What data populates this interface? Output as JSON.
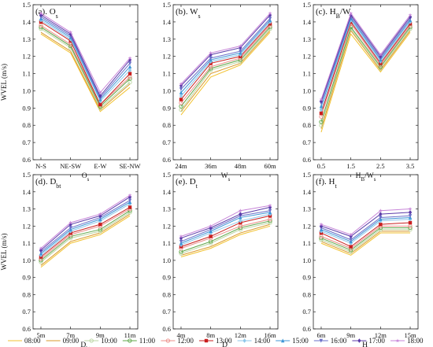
{
  "chart_data": {
    "type": "line",
    "ylim": [
      0.6,
      1.5
    ],
    "yticks": [
      0.6,
      0.7,
      0.8,
      0.9,
      1.0,
      1.1,
      1.2,
      1.3,
      1.4,
      1.5
    ],
    "ylabel": "WVEL (m/s)",
    "legend": [
      "08:00",
      "09:00",
      "10:00",
      "11:00",
      "12:00",
      "13:00",
      "14:00",
      "15:00",
      "16:00",
      "17:00",
      "18:00"
    ],
    "legend_placement": "bottom",
    "series_colors": [
      "#f2c230",
      "#d9982b",
      "#bcd6a4",
      "#5fa74a",
      "#ec8f8a",
      "#c91e1e",
      "#8fc7ea",
      "#3f96d6",
      "#6a6fc8",
      "#5b3aa8",
      "#c785d8"
    ],
    "series_markers": [
      "none",
      "none",
      "circle",
      "circle",
      "circle",
      "square",
      "diamond",
      "triangle-up",
      "triangle-down",
      "diamond",
      "star"
    ],
    "panels": [
      {
        "title": "(a). O",
        "title_sub": "s",
        "xlabel": "O",
        "xlabel_sub": "s",
        "categories": [
          "N-S",
          "NE-SW",
          "E-W",
          "SE-NW"
        ],
        "series": [
          [
            1.33,
            1.22,
            0.88,
            1.02
          ],
          [
            1.34,
            1.23,
            0.89,
            1.04
          ],
          [
            1.36,
            1.25,
            0.9,
            1.05
          ],
          [
            1.37,
            1.26,
            0.91,
            1.07
          ],
          [
            1.38,
            1.27,
            0.92,
            1.08
          ],
          [
            1.4,
            1.29,
            0.92,
            1.1
          ],
          [
            1.41,
            1.3,
            0.94,
            1.12
          ],
          [
            1.42,
            1.31,
            0.95,
            1.14
          ],
          [
            1.43,
            1.32,
            0.96,
            1.16
          ],
          [
            1.44,
            1.33,
            0.97,
            1.18
          ],
          [
            1.45,
            1.34,
            0.99,
            1.19
          ]
        ]
      },
      {
        "title": "(b). W",
        "title_sub": "s",
        "xlabel": "W",
        "xlabel_sub": "s",
        "categories": [
          "24m",
          "36m",
          "48m",
          "60m"
        ],
        "series": [
          [
            0.86,
            1.08,
            1.15,
            1.34
          ],
          [
            0.88,
            1.1,
            1.16,
            1.35
          ],
          [
            0.89,
            1.12,
            1.17,
            1.36
          ],
          [
            0.91,
            1.13,
            1.18,
            1.37
          ],
          [
            0.93,
            1.14,
            1.19,
            1.38
          ],
          [
            0.95,
            1.16,
            1.2,
            1.39
          ],
          [
            0.97,
            1.17,
            1.21,
            1.4
          ],
          [
            0.99,
            1.18,
            1.22,
            1.41
          ],
          [
            1.01,
            1.19,
            1.23,
            1.42
          ],
          [
            1.03,
            1.21,
            1.25,
            1.44
          ],
          [
            1.04,
            1.22,
            1.26,
            1.45
          ]
        ]
      },
      {
        "title": "(c). H",
        "title_sub": "B",
        "title_tail": "/W",
        "title_tail_sub": "s",
        "xlabel": "H",
        "xlabel_sub": "B",
        "xlabel_tail": "/W",
        "xlabel_tail_sub": "s",
        "categories": [
          "0.5",
          "1.5",
          "2.5",
          "3.5"
        ],
        "series": [
          [
            0.76,
            1.33,
            1.11,
            1.34
          ],
          [
            0.78,
            1.35,
            1.12,
            1.35
          ],
          [
            0.8,
            1.36,
            1.13,
            1.36
          ],
          [
            0.82,
            1.37,
            1.14,
            1.37
          ],
          [
            0.85,
            1.39,
            1.15,
            1.38
          ],
          [
            0.87,
            1.4,
            1.16,
            1.39
          ],
          [
            0.89,
            1.41,
            1.17,
            1.4
          ],
          [
            0.91,
            1.42,
            1.18,
            1.41
          ],
          [
            0.93,
            1.43,
            1.19,
            1.42
          ],
          [
            0.94,
            1.44,
            1.2,
            1.43
          ],
          [
            0.95,
            1.45,
            1.21,
            1.44
          ]
        ]
      },
      {
        "title": "(d). D",
        "title_sub": "bt",
        "xlabel": "D",
        "xlabel_sub": "bt",
        "categories": [
          "5m",
          "7m",
          "9m",
          "11m"
        ],
        "series": [
          [
            0.96,
            1.1,
            1.15,
            1.26
          ],
          [
            0.97,
            1.11,
            1.16,
            1.27
          ],
          [
            0.99,
            1.13,
            1.17,
            1.28
          ],
          [
            1.0,
            1.14,
            1.18,
            1.29
          ],
          [
            1.01,
            1.15,
            1.2,
            1.3
          ],
          [
            1.02,
            1.16,
            1.21,
            1.31
          ],
          [
            1.03,
            1.17,
            1.23,
            1.33
          ],
          [
            1.04,
            1.18,
            1.24,
            1.34
          ],
          [
            1.05,
            1.19,
            1.25,
            1.35
          ],
          [
            1.06,
            1.21,
            1.26,
            1.37
          ],
          [
            1.07,
            1.22,
            1.27,
            1.38
          ]
        ]
      },
      {
        "title": "(e). D",
        "title_sub": "t",
        "xlabel": "D",
        "xlabel_sub": "t",
        "categories": [
          "4m",
          "8m",
          "12m",
          "16m"
        ],
        "series": [
          [
            1.02,
            1.07,
            1.15,
            1.2
          ],
          [
            1.03,
            1.08,
            1.16,
            1.21
          ],
          [
            1.04,
            1.1,
            1.18,
            1.22
          ],
          [
            1.05,
            1.11,
            1.19,
            1.23
          ],
          [
            1.07,
            1.13,
            1.2,
            1.24
          ],
          [
            1.08,
            1.14,
            1.22,
            1.26
          ],
          [
            1.09,
            1.16,
            1.23,
            1.27
          ],
          [
            1.1,
            1.17,
            1.25,
            1.28
          ],
          [
            1.11,
            1.18,
            1.26,
            1.29
          ],
          [
            1.13,
            1.19,
            1.27,
            1.31
          ],
          [
            1.14,
            1.2,
            1.29,
            1.32
          ]
        ]
      },
      {
        "title": "(f). H",
        "title_sub": "t",
        "xlabel": "H",
        "xlabel_sub": "t",
        "categories": [
          "6m",
          "9m",
          "12m",
          "15m"
        ],
        "series": [
          [
            1.1,
            1.03,
            1.16,
            1.16
          ],
          [
            1.11,
            1.04,
            1.17,
            1.17
          ],
          [
            1.12,
            1.05,
            1.18,
            1.18
          ],
          [
            1.13,
            1.06,
            1.19,
            1.19
          ],
          [
            1.14,
            1.07,
            1.2,
            1.2
          ],
          [
            1.16,
            1.08,
            1.21,
            1.22
          ],
          [
            1.17,
            1.1,
            1.23,
            1.24
          ],
          [
            1.18,
            1.11,
            1.24,
            1.25
          ],
          [
            1.19,
            1.12,
            1.25,
            1.26
          ],
          [
            1.2,
            1.14,
            1.27,
            1.28
          ],
          [
            1.21,
            1.15,
            1.29,
            1.3
          ]
        ]
      }
    ]
  }
}
